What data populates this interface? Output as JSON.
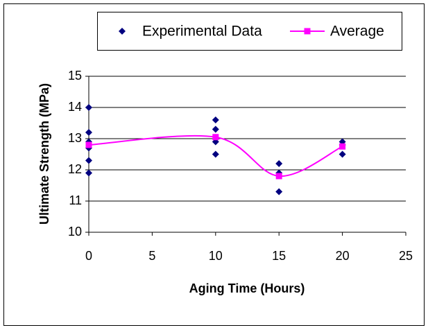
{
  "chart_data": {
    "type": "scatter",
    "x_label": "Aging Time (Hours)",
    "y_label": "Ultimate Strength (MPa)",
    "series": [
      {
        "name": "Experimental Data",
        "color": "#000080",
        "marker": "diamond",
        "line": false,
        "x": [
          0,
          0,
          0,
          0,
          0,
          0,
          10,
          10,
          10,
          10,
          10,
          15,
          15,
          15,
          20,
          20,
          20
        ],
        "values": [
          14.0,
          13.2,
          12.9,
          12.7,
          12.3,
          11.9,
          13.6,
          13.3,
          13.0,
          12.9,
          12.5,
          12.2,
          11.9,
          11.3,
          12.9,
          12.8,
          12.5
        ]
      },
      {
        "name": "Average",
        "color": "#ff00ff",
        "marker": "square",
        "line": true,
        "smooth": true,
        "x": [
          0,
          10,
          15,
          20
        ],
        "values": [
          12.8,
          13.05,
          11.8,
          12.75
        ]
      }
    ],
    "xlim": [
      0,
      25
    ],
    "xticks": [
      0,
      5,
      10,
      15,
      20,
      25
    ],
    "ylim": [
      10,
      15
    ],
    "yticks": [
      10,
      11,
      12,
      13,
      14,
      15
    ],
    "grid": true,
    "legend": "top"
  }
}
